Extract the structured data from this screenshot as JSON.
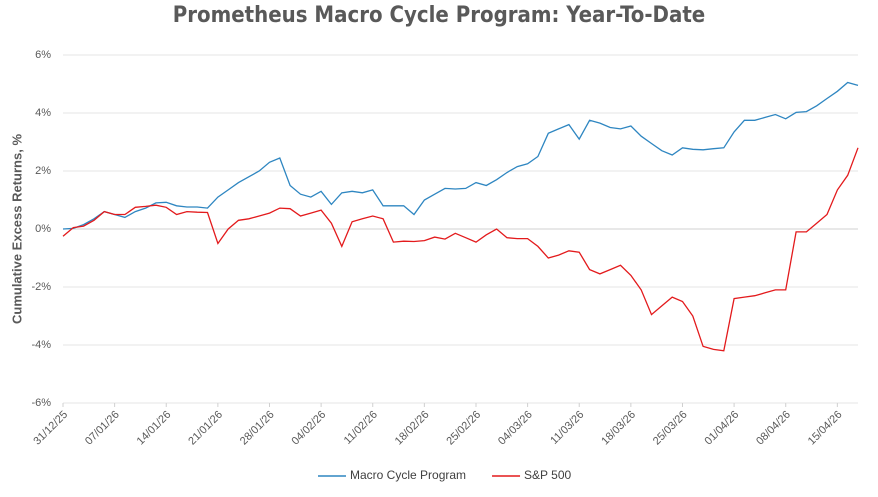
{
  "chart_data": {
    "type": "line",
    "title": "Prometheus Macro Cycle Program: Year-To-Date",
    "y_label": "Cumulative Excess Returns, %",
    "categories": [
      "31/12/25",
      null,
      null,
      null,
      null,
      "07/01/26",
      null,
      null,
      null,
      null,
      "14/01/26",
      null,
      null,
      null,
      null,
      "21/01/26",
      null,
      null,
      null,
      null,
      "28/01/26",
      null,
      null,
      null,
      null,
      "04/02/26",
      null,
      null,
      null,
      null,
      "11/02/26",
      null,
      null,
      null,
      null,
      "18/02/26",
      null,
      null,
      null,
      null,
      "25/02/26",
      null,
      null,
      null,
      null,
      "04/03/26",
      null,
      null,
      null,
      null,
      "11/03/26",
      null,
      null,
      null,
      null,
      "18/03/26",
      null,
      null,
      null,
      null,
      "25/03/26",
      null,
      null,
      null,
      null,
      "01/04/26",
      null,
      null,
      null,
      null,
      "08/04/26",
      null,
      null,
      null,
      null,
      "15/04/26",
      null,
      null
    ],
    "series": [
      {
        "name": "Macro Cycle Program",
        "color": "#2e86c1",
        "values": [
          0,
          0.02,
          0.15,
          0.35,
          0.6,
          0.5,
          0.4,
          0.6,
          0.72,
          0.9,
          0.92,
          0.8,
          0.76,
          0.76,
          0.72,
          1.1,
          1.35,
          1.6,
          1.8,
          2.0,
          2.3,
          2.45,
          1.5,
          1.2,
          1.1,
          1.3,
          0.85,
          1.25,
          1.3,
          1.25,
          1.35,
          0.8,
          0.8,
          0.8,
          0.5,
          1.0,
          1.2,
          1.4,
          1.38,
          1.4,
          1.6,
          1.5,
          1.7,
          1.95,
          2.15,
          2.25,
          2.5,
          3.3,
          3.45,
          3.6,
          3.1,
          3.75,
          3.65,
          3.5,
          3.45,
          3.55,
          3.2,
          2.95,
          2.7,
          2.55,
          2.8,
          2.75,
          2.73,
          2.77,
          2.8,
          3.35,
          3.75,
          3.75,
          3.85,
          3.95,
          3.8,
          4.02,
          4.05,
          4.25,
          4.5,
          4.75,
          5.05,
          4.95
        ]
      },
      {
        "name": "S&P 500",
        "color": "#e31a1c",
        "values": [
          -0.25,
          0.05,
          0.1,
          0.3,
          0.6,
          0.5,
          0.5,
          0.75,
          0.78,
          0.82,
          0.75,
          0.5,
          0.6,
          0.58,
          0.57,
          -0.5,
          0.0,
          0.3,
          0.35,
          0.45,
          0.55,
          0.72,
          0.7,
          0.45,
          0.55,
          0.65,
          0.2,
          -0.6,
          0.25,
          0.35,
          0.45,
          0.35,
          -0.45,
          -0.42,
          -0.43,
          -0.4,
          -0.28,
          -0.35,
          -0.15,
          -0.3,
          -0.45,
          -0.2,
          0.0,
          -0.3,
          -0.33,
          -0.33,
          -0.6,
          -1.0,
          -0.9,
          -0.75,
          -0.8,
          -1.4,
          -1.55,
          -1.4,
          -1.25,
          -1.6,
          -2.1,
          -2.95,
          -2.65,
          -2.35,
          -2.5,
          -3.0,
          -4.05,
          -4.15,
          -4.2,
          -2.4,
          -2.35,
          -2.3,
          -2.2,
          -2.1,
          -2.1,
          -0.1,
          -0.1,
          0.2,
          0.5,
          1.35,
          1.85,
          2.8
        ]
      }
    ],
    "ylim": [
      -6,
      6
    ],
    "yticks": [
      {
        "value": -6,
        "label": "-6%"
      },
      {
        "value": -4,
        "label": "-4%"
      },
      {
        "value": -2,
        "label": "-2%"
      },
      {
        "value": 0,
        "label": "0%"
      },
      {
        "value": 2,
        "label": "2%"
      },
      {
        "value": 4,
        "label": "4%"
      },
      {
        "value": 6,
        "label": "6%"
      }
    ],
    "grid": true,
    "legend": "bottom"
  }
}
